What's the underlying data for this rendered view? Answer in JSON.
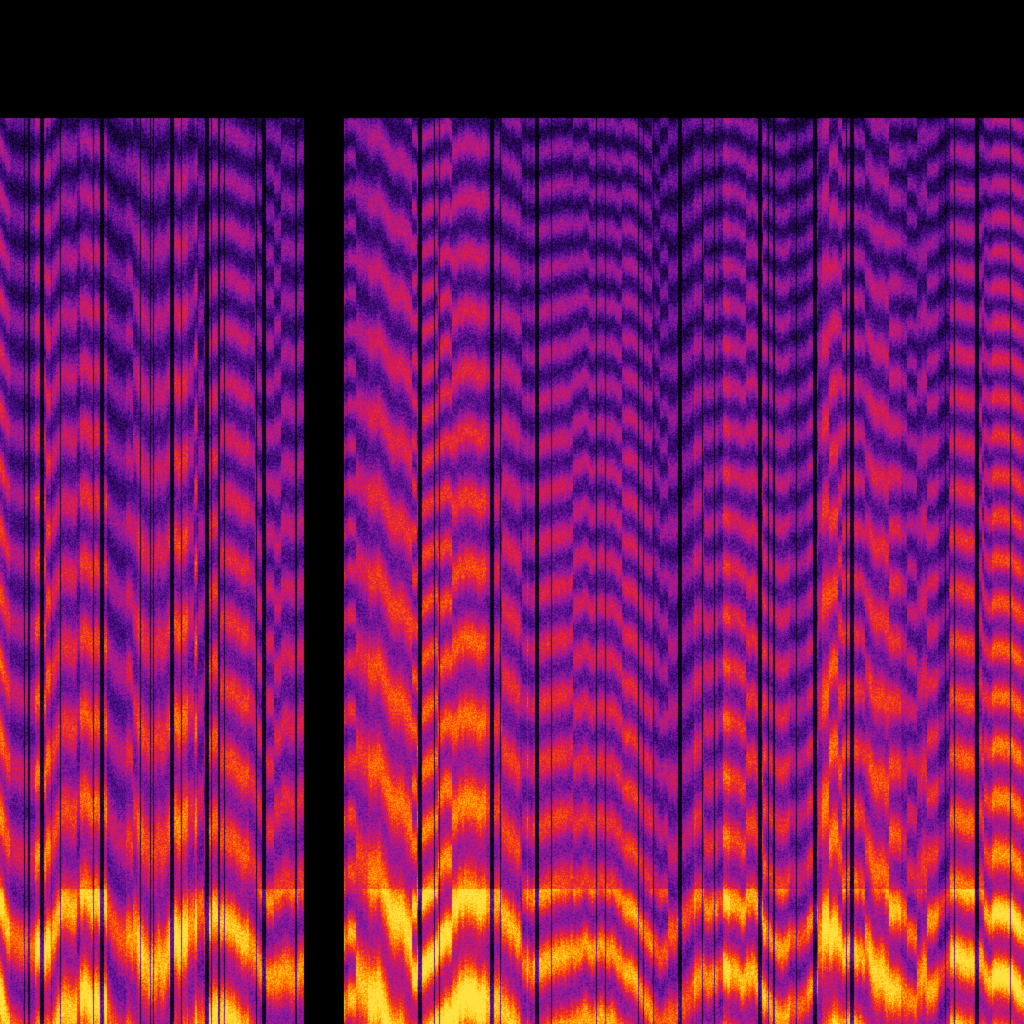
{
  "image": {
    "kind": "spectrogram",
    "background": "#000000",
    "colormap": [
      "#000000",
      "#1a0640",
      "#4b0c8c",
      "#8a1ba0",
      "#c2187a",
      "#e8202e",
      "#ff5a00",
      "#ffa800",
      "#ffe040"
    ],
    "silent_gap": true
  }
}
